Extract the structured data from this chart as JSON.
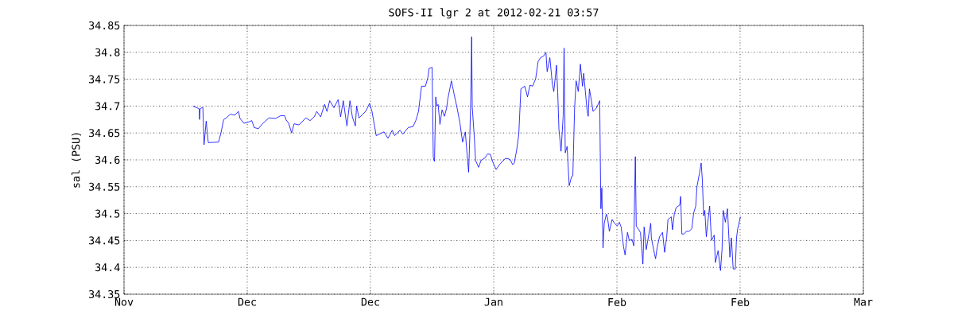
{
  "chart_data": {
    "type": "line",
    "title": "SOFS-II lgr 2 at 2012-02-21 03:57",
    "ylabel": "sal (PSU)",
    "color": "#0000ff",
    "grid": true,
    "xlim": [
      "2011-11-26",
      "2012-03-07"
    ],
    "ylim": [
      34.35,
      34.85
    ],
    "xticks": [
      {
        "value": "2011-11-26",
        "label": "Nov"
      },
      {
        "value": "2011-12-13",
        "label": "Dec"
      },
      {
        "value": "2011-12-30",
        "label": "Dec"
      },
      {
        "value": "2012-01-16",
        "label": "Jan"
      },
      {
        "value": "2012-02-02",
        "label": "Feb"
      },
      {
        "value": "2012-02-19",
        "label": "Feb"
      },
      {
        "value": "2012-03-07",
        "label": "Mar"
      }
    ],
    "yticks": [
      34.35,
      34.4,
      34.45,
      34.5,
      34.55,
      34.6,
      34.65,
      34.7,
      34.75,
      34.8,
      34.85
    ],
    "x": [
      "2011-12-05T12:00",
      "2011-12-06T09:00",
      "2011-12-06T10:00",
      "2011-12-06T12:00",
      "2011-12-06T21:00",
      "2011-12-07T01:00",
      "2011-12-07T08:00",
      "2011-12-07T15:00",
      "2011-12-09T01:00",
      "2011-12-09T09:00",
      "2011-12-09T18:00",
      "2011-12-10T03:00",
      "2011-12-10T16:00",
      "2011-12-11T06:00",
      "2011-12-11T19:00",
      "2011-12-12T00:00",
      "2011-12-12T13:00",
      "2011-12-13T03:00",
      "2011-12-13T15:00",
      "2011-12-13T23:00",
      "2011-12-14T13:00",
      "2011-12-15T02:00",
      "2011-12-16T00:00",
      "2011-12-16T22:00",
      "2011-12-17T14:00",
      "2011-12-18T04:00",
      "2011-12-18T08:00",
      "2011-12-18T17:00",
      "2011-12-19T03:00",
      "2011-12-19T11:00",
      "2011-12-20T03:00",
      "2011-12-21T02:00",
      "2011-12-21T16:00",
      "2011-12-22T06:00",
      "2011-12-22T14:00",
      "2011-12-23T03:00",
      "2011-12-23T16:00",
      "2011-12-24T00:00",
      "2011-12-24T09:00",
      "2011-12-24T23:00",
      "2011-12-25T13:00",
      "2011-12-25T21:00",
      "2011-12-26T06:00",
      "2011-12-26T18:00",
      "2011-12-27T04:00",
      "2011-12-27T12:00",
      "2011-12-27T22:00",
      "2011-12-28T02:00",
      "2011-12-28T10:00",
      "2011-12-29T08:00",
      "2011-12-29T21:00",
      "2011-12-30T05:00",
      "2011-12-30T19:00",
      "2011-12-31T21:00",
      "2012-01-01T10:00",
      "2012-01-02T00:00",
      "2012-01-02T08:00",
      "2012-01-03T02:00",
      "2012-01-03T11:00",
      "2012-01-04T05:00",
      "2012-01-04T21:00",
      "2012-01-05T06:00",
      "2012-01-05T15:00",
      "2012-01-06T01:00",
      "2012-01-06T14:00",
      "2012-01-06T22:00",
      "2012-01-07T02:00",
      "2012-01-07T12:00",
      "2012-01-07T16:00",
      "2012-01-07T20:00",
      "2012-01-08T00:00",
      "2012-01-08T04:00",
      "2012-01-08T08:00",
      "2012-01-08T14:00",
      "2012-01-08T21:00",
      "2012-01-09T05:00",
      "2012-01-09T12:00",
      "2012-01-09T16:00",
      "2012-01-10T04:00",
      "2012-01-10T13:00",
      "2012-01-10T23:00",
      "2012-01-11T08:00",
      "2012-01-11T17:00",
      "2012-01-12T02:00",
      "2012-01-12T06:00",
      "2012-01-12T13:00",
      "2012-01-12T17:00",
      "2012-01-12T20:00",
      "2012-01-12T23:00",
      "2012-01-13T01:00",
      "2012-01-13T08:00",
      "2012-01-13T12:00",
      "2012-01-13T22:00",
      "2012-01-14T06:00",
      "2012-01-14T18:00",
      "2012-01-15T04:00",
      "2012-01-15T13:00",
      "2012-01-15T21:00",
      "2012-01-16T08:00",
      "2012-01-16T19:00",
      "2012-01-17T15:00",
      "2012-01-18T06:00",
      "2012-01-18T15:00",
      "2012-01-18T20:00",
      "2012-01-19T04:00",
      "2012-01-19T11:00",
      "2012-01-19T18:00",
      "2012-01-20T07:00",
      "2012-01-20T16:00",
      "2012-01-21T00:00",
      "2012-01-21T09:00",
      "2012-01-21T19:00",
      "2012-01-22T03:00",
      "2012-01-22T11:00",
      "2012-01-22T21:00",
      "2012-01-23T05:00",
      "2012-01-23T09:00",
      "2012-01-23T18:00",
      "2012-01-24T02:00",
      "2012-01-24T07:00",
      "2012-01-24T16:00",
      "2012-01-24T20:00",
      "2012-01-25T00:00",
      "2012-01-25T07:00",
      "2012-01-25T14:00",
      "2012-01-25T17:00",
      "2012-01-25T21:00",
      "2012-01-26T03:00",
      "2012-01-26T10:00",
      "2012-01-26T18:00",
      "2012-01-26T22:00",
      "2012-01-27T04:00",
      "2012-01-27T09:00",
      "2012-01-27T16:00",
      "2012-01-27T23:00",
      "2012-01-28T06:00",
      "2012-01-28T10:00",
      "2012-01-28T21:00",
      "2012-01-29T01:00",
      "2012-01-29T05:00",
      "2012-01-29T13:00",
      "2012-01-29T17:00",
      "2012-01-30T04:00",
      "2012-01-30T15:00",
      "2012-01-30T18:00",
      "2012-01-30T19:00",
      "2012-01-30T22:00",
      "2012-01-31T02:00",
      "2012-01-31T06:00",
      "2012-01-31T13:00",
      "2012-01-31T17:00",
      "2012-01-31T23:00",
      "2012-02-01T08:00",
      "2012-02-01T16:00",
      "2012-02-02T01:00",
      "2012-02-02T08:00",
      "2012-02-02T14:00",
      "2012-02-02T22:00",
      "2012-02-03T03:00",
      "2012-02-03T11:00",
      "2012-02-03T17:00",
      "2012-02-04T02:00",
      "2012-02-04T08:00",
      "2012-02-04T10:00",
      "2012-02-04T13:00",
      "2012-02-04T16:00",
      "2012-02-05T06:00",
      "2012-02-05T14:00",
      "2012-02-05T18:00",
      "2012-02-06T01:00",
      "2012-02-06T16:00",
      "2012-02-06T18:00",
      "2012-02-07T04:00",
      "2012-02-07T08:00",
      "2012-02-07T13:00",
      "2012-02-07T21:00",
      "2012-02-08T07:00",
      "2012-02-08T14:00",
      "2012-02-08T21:00",
      "2012-02-09T01:00",
      "2012-02-09T12:00",
      "2012-02-09T16:00",
      "2012-02-09T22:00",
      "2012-02-10T04:00",
      "2012-02-10T16:00",
      "2012-02-10T19:00",
      "2012-02-10T23:00",
      "2012-02-11T06:00",
      "2012-02-11T14:00",
      "2012-02-11T23:00",
      "2012-02-12T08:00",
      "2012-02-12T14:00",
      "2012-02-12T21:00",
      "2012-02-13T01:00",
      "2012-02-13T09:00",
      "2012-02-13T15:00",
      "2012-02-13T19:00",
      "2012-02-13T23:00",
      "2012-02-14T03:00",
      "2012-02-14T08:00",
      "2012-02-14T13:00",
      "2012-02-14T19:00",
      "2012-02-15T01:00",
      "2012-02-15T10:00",
      "2012-02-15T14:00",
      "2012-02-15T23:00",
      "2012-02-16T07:00",
      "2012-02-16T12:00",
      "2012-02-16T16:00",
      "2012-02-16T23:00",
      "2012-02-17T06:00",
      "2012-02-17T14:00",
      "2012-02-17T19:00",
      "2012-02-18T01:00",
      "2012-02-18T08:00",
      "2012-02-18T12:00",
      "2012-02-18T16:00",
      "2012-02-19T01:00"
    ],
    "values": [
      34.7,
      34.695,
      34.675,
      34.695,
      34.698,
      34.628,
      34.672,
      34.632,
      34.633,
      34.65,
      34.675,
      34.678,
      34.685,
      34.683,
      34.69,
      34.677,
      34.668,
      34.67,
      34.673,
      34.66,
      34.658,
      34.667,
      34.678,
      34.677,
      34.682,
      34.682,
      34.675,
      34.668,
      34.65,
      34.667,
      34.665,
      34.678,
      34.673,
      34.68,
      34.69,
      34.68,
      34.703,
      34.69,
      34.71,
      34.697,
      34.712,
      34.68,
      34.71,
      34.663,
      34.71,
      34.68,
      34.663,
      34.7,
      34.678,
      34.69,
      34.705,
      34.69,
      34.645,
      34.652,
      34.64,
      34.655,
      34.645,
      34.655,
      34.648,
      34.66,
      34.662,
      34.673,
      34.69,
      34.737,
      34.737,
      34.753,
      34.77,
      34.772,
      34.605,
      34.597,
      34.717,
      34.7,
      34.703,
      34.666,
      34.693,
      34.681,
      34.696,
      34.713,
      34.747,
      34.722,
      34.696,
      34.669,
      34.633,
      34.652,
      34.623,
      34.577,
      34.645,
      34.713,
      34.829,
      34.698,
      34.64,
      34.599,
      34.586,
      34.599,
      34.603,
      34.611,
      34.61,
      34.596,
      34.582,
      34.591,
      34.603,
      34.601,
      34.591,
      34.594,
      34.618,
      34.647,
      34.732,
      34.737,
      34.717,
      34.739,
      34.737,
      34.751,
      34.783,
      34.79,
      34.793,
      34.8,
      34.764,
      34.79,
      34.742,
      34.727,
      34.776,
      34.725,
      34.657,
      34.616,
      34.681,
      34.808,
      34.613,
      34.625,
      34.552,
      34.569,
      34.57,
      34.698,
      34.747,
      34.727,
      34.778,
      34.737,
      34.761,
      34.693,
      34.681,
      34.732,
      34.705,
      34.69,
      34.696,
      34.71,
      34.548,
      34.509,
      34.548,
      34.436,
      34.482,
      34.499,
      34.492,
      34.467,
      34.489,
      34.482,
      34.477,
      34.484,
      34.475,
      34.438,
      34.423,
      34.465,
      34.45,
      34.452,
      34.44,
      34.516,
      34.606,
      34.477,
      34.465,
      34.406,
      34.475,
      34.433,
      34.482,
      34.455,
      34.426,
      34.416,
      34.436,
      34.457,
      34.465,
      34.428,
      34.457,
      34.489,
      34.494,
      34.47,
      34.499,
      34.511,
      34.516,
      34.532,
      34.462,
      34.462,
      34.467,
      34.467,
      34.472,
      34.501,
      34.514,
      34.55,
      34.574,
      34.594,
      34.562,
      34.496,
      34.506,
      34.457,
      34.484,
      34.514,
      34.45,
      34.46,
      34.409,
      34.431,
      34.394,
      34.433,
      34.506,
      34.484,
      34.509,
      34.419,
      34.455,
      34.397,
      34.397,
      34.455,
      34.472,
      34.494
    ]
  }
}
